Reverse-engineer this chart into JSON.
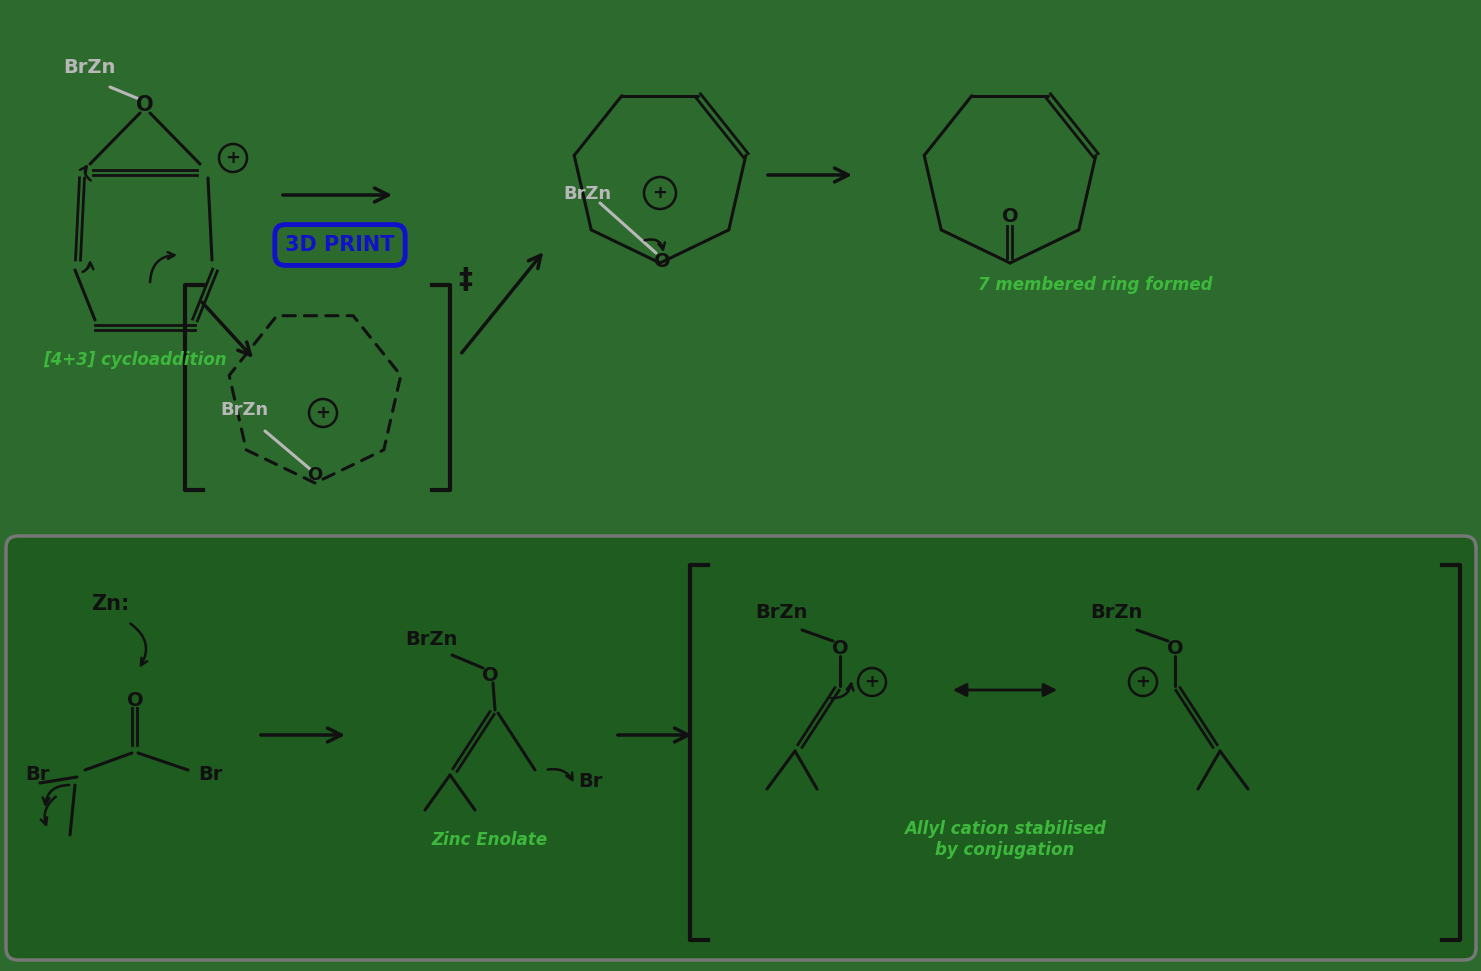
{
  "bg_color": "#2d6a2d",
  "text_black": "#111111",
  "text_green": "#3db83d",
  "text_gray": "#b8b8b8",
  "text_blue": "#1111cc",
  "label_4plus3": "[4+3] cycloaddition",
  "label_7member": "7 membered ring formed",
  "label_zinc_enolate": "Zinc Enolate",
  "label_allyl": "Allyl cation stabilised\nby conjugation",
  "label_3dprint": "3D PRINT",
  "figsize": [
    14.81,
    9.71
  ],
  "dpi": 100
}
